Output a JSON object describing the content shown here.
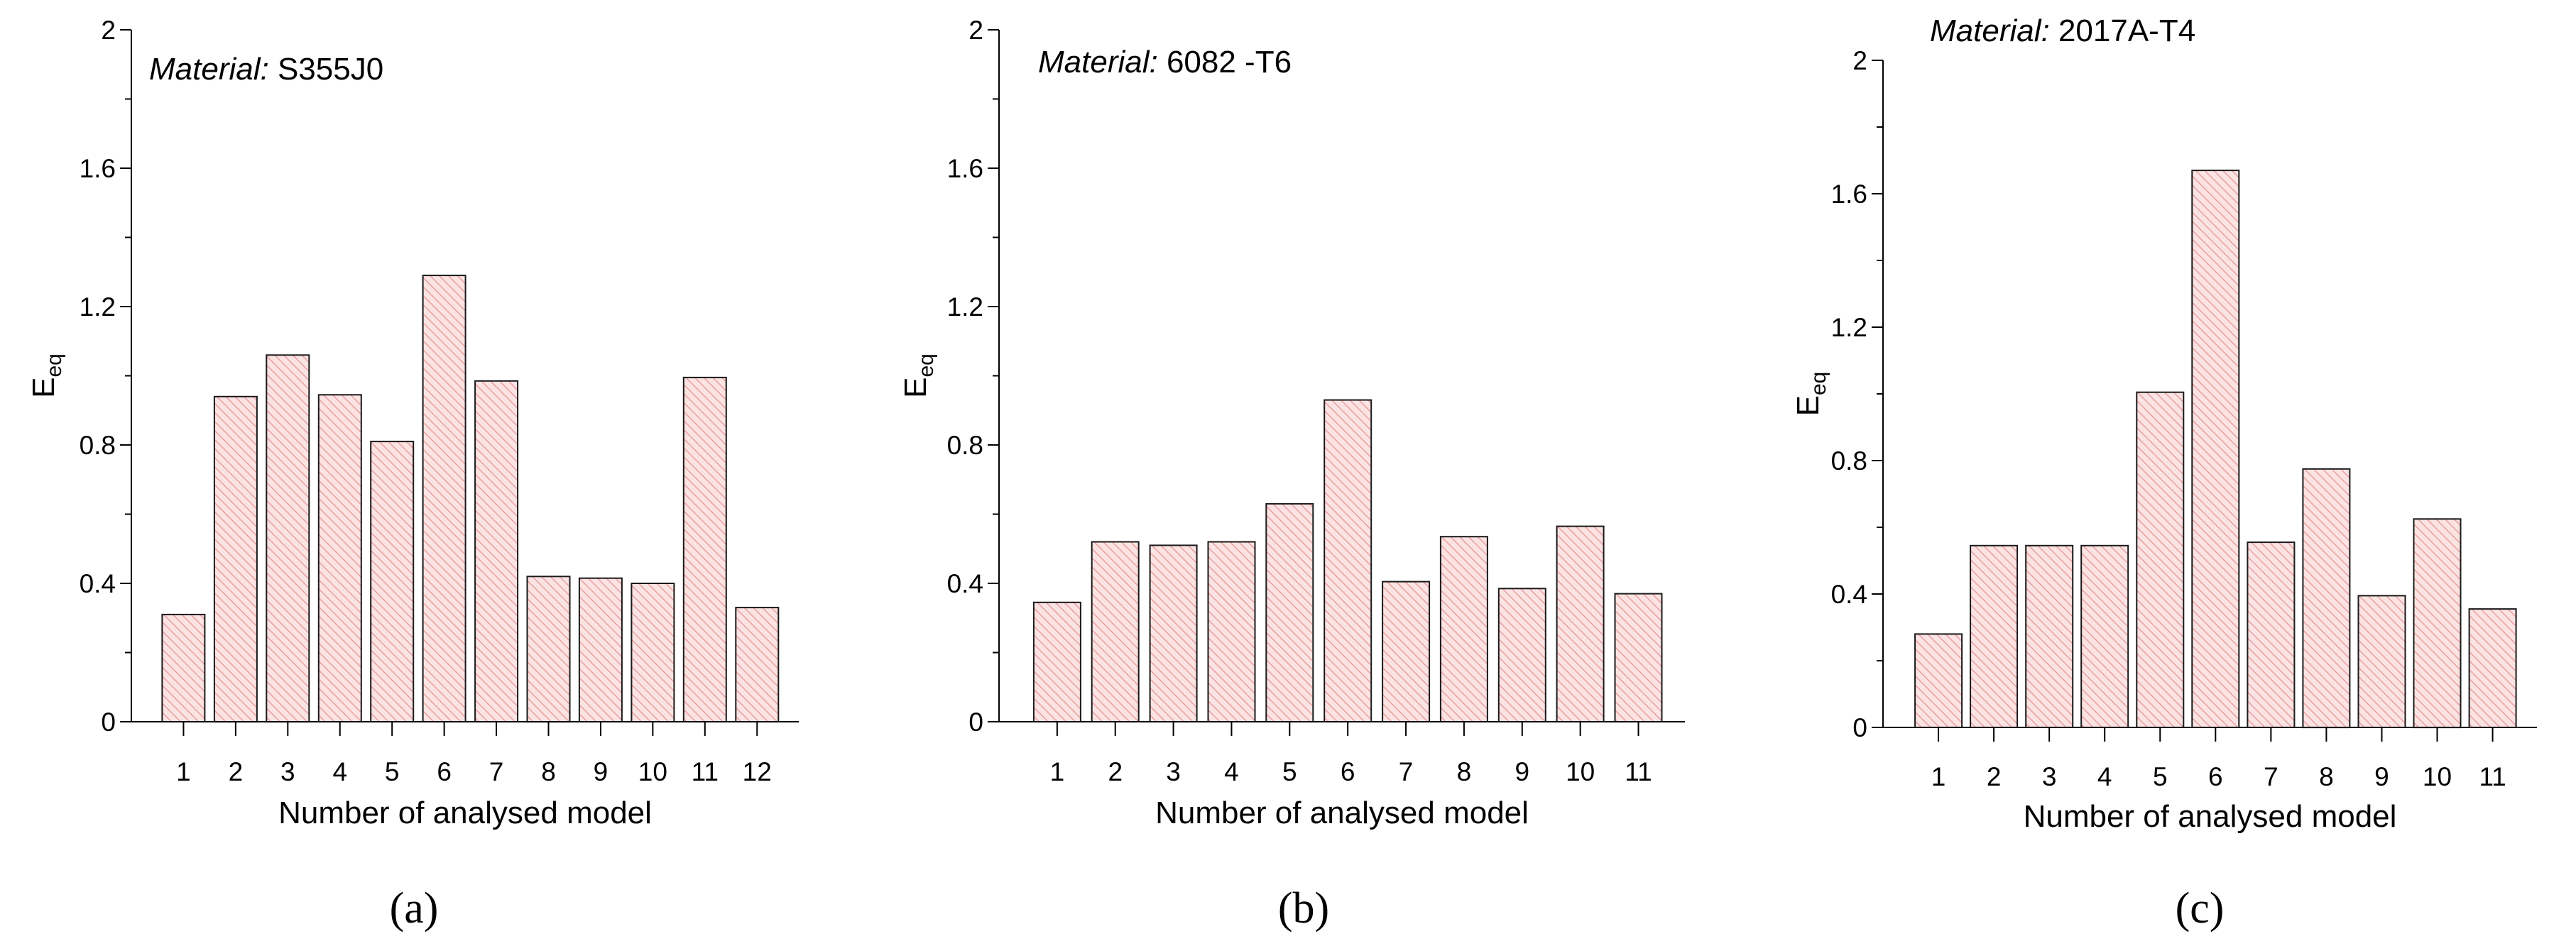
{
  "colors": {
    "bar_fill": "#fbe3e3",
    "hatch": "#e8a0a0",
    "bar_stroke": "#1a1a1a",
    "axis": "#000000"
  },
  "chart_data": [
    {
      "type": "bar",
      "panel_label": "(a)",
      "material_prefix": "Material:",
      "material_value": "S355J0",
      "xlabel": "Number of analysed model",
      "ylabel": "E",
      "ylabel_sub": "eq",
      "ylim": [
        0,
        2
      ],
      "yticks": [
        "0",
        "0.4",
        "0.8",
        "1.2",
        "1.6",
        "2"
      ],
      "categories": [
        "1",
        "2",
        "3",
        "4",
        "5",
        "6",
        "7",
        "8",
        "9",
        "10",
        "11",
        "12"
      ],
      "values": [
        0.31,
        0.94,
        1.06,
        0.945,
        0.81,
        1.29,
        0.985,
        0.42,
        0.415,
        0.4,
        0.995,
        0.33
      ]
    },
    {
      "type": "bar",
      "panel_label": "(b)",
      "material_prefix": "Material:",
      "material_value": "6082 -T6",
      "xlabel": "Number of analysed model",
      "ylabel": "E",
      "ylabel_sub": "eq",
      "ylim": [
        0,
        2
      ],
      "yticks": [
        "0",
        "0.4",
        "0.8",
        "1.2",
        "1.6",
        "2"
      ],
      "categories": [
        "1",
        "2",
        "3",
        "4",
        "5",
        "6",
        "7",
        "8",
        "9",
        "10",
        "11"
      ],
      "values": [
        0.345,
        0.52,
        0.51,
        0.52,
        0.63,
        0.93,
        0.405,
        0.535,
        0.385,
        0.565,
        0.37
      ]
    },
    {
      "type": "bar",
      "panel_label": "(c)",
      "material_prefix": "Material:",
      "material_value": "2017A-T4",
      "xlabel": "Number of analysed model",
      "ylabel": "E",
      "ylabel_sub": "eq",
      "ylim": [
        0,
        2
      ],
      "yticks": [
        "0",
        "0.4",
        "0.8",
        "1.2",
        "1.6",
        "2"
      ],
      "categories": [
        "1",
        "2",
        "3",
        "4",
        "5",
        "6",
        "7",
        "8",
        "9",
        "10",
        "11"
      ],
      "values": [
        0.28,
        0.545,
        0.545,
        0.545,
        1.005,
        1.67,
        0.555,
        0.775,
        0.395,
        0.625,
        0.355
      ]
    }
  ]
}
